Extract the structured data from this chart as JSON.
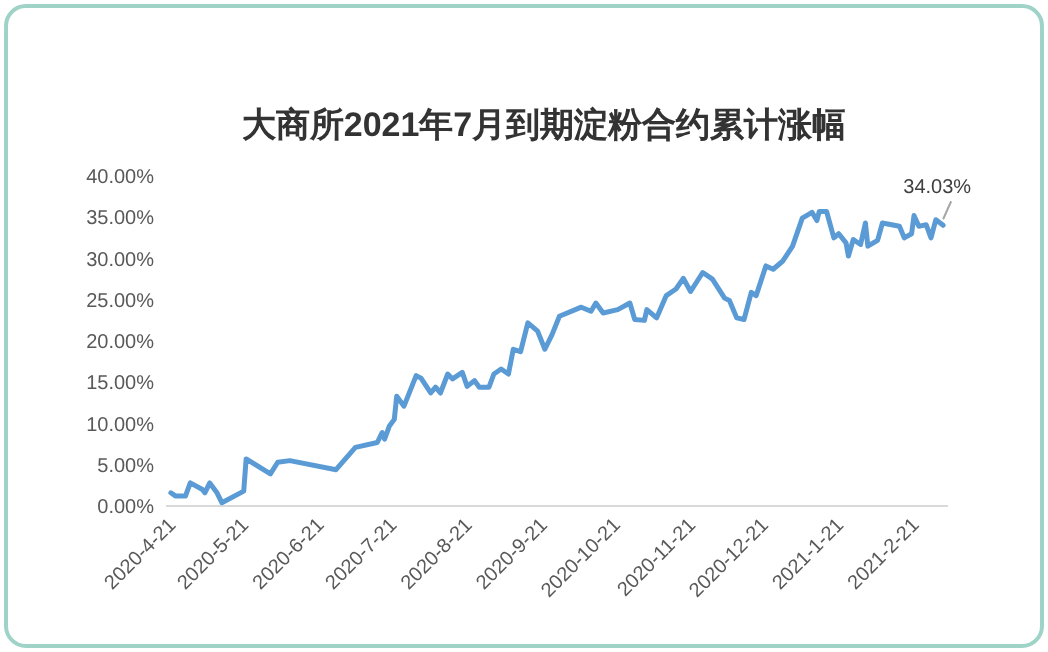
{
  "chart_data": {
    "type": "line",
    "title": "大商所2021年7月到期淀粉合约累计涨幅",
    "x": [
      "2020-04-21",
      "2020-04-23",
      "2020-04-27",
      "2020-04-29",
      "2020-05-04",
      "2020-05-05",
      "2020-05-07",
      "2020-05-10",
      "2020-05-12",
      "2020-05-21",
      "2020-05-22",
      "2020-06-01",
      "2020-06-04",
      "2020-06-09",
      "2020-06-28",
      "2020-07-06",
      "2020-07-15",
      "2020-07-17",
      "2020-07-18",
      "2020-07-20",
      "2020-07-22",
      "2020-07-23",
      "2020-07-26",
      "2020-07-31",
      "2020-08-02",
      "2020-08-06",
      "2020-08-08",
      "2020-08-10",
      "2020-08-13",
      "2020-08-15",
      "2020-08-19",
      "2020-08-21",
      "2020-08-24",
      "2020-08-26",
      "2020-08-30",
      "2020-09-01",
      "2020-09-04",
      "2020-09-07",
      "2020-09-09",
      "2020-09-12",
      "2020-09-15",
      "2020-09-19",
      "2020-09-22",
      "2020-09-25",
      "2020-09-28",
      "2020-10-07",
      "2020-10-11",
      "2020-10-13",
      "2020-10-16",
      "2020-10-22",
      "2020-10-27",
      "2020-10-29",
      "2020-11-02",
      "2020-11-03",
      "2020-11-07",
      "2020-11-11",
      "2020-11-15",
      "2020-11-18",
      "2020-11-21",
      "2020-11-26",
      "2020-11-30",
      "2020-12-05",
      "2020-12-07",
      "2020-12-10",
      "2020-12-13",
      "2020-12-16",
      "2020-12-18",
      "2020-12-22",
      "2020-12-25",
      "2020-12-29",
      "2021-01-02",
      "2021-01-06",
      "2021-01-10",
      "2021-01-12",
      "2021-01-13",
      "2021-01-16",
      "2021-01-19",
      "2021-01-21",
      "2021-01-24",
      "2021-01-25",
      "2021-01-27",
      "2021-01-30",
      "2021-02-01",
      "2021-02-02",
      "2021-02-06",
      "2021-02-08",
      "2021-02-15",
      "2021-02-17",
      "2021-02-20",
      "2021-02-21",
      "2021-02-23",
      "2021-02-26",
      "2021-02-28",
      "2021-03-02",
      "2021-03-05"
    ],
    "series": [
      {
        "color": "#5b9bd5",
        "values": [
          1.6,
          1.2,
          1.2,
          2.8,
          2.0,
          1.6,
          2.8,
          1.6,
          0.4,
          1.8,
          5.7,
          3.9,
          5.3,
          5.5,
          4.4,
          7.1,
          7.7,
          8.9,
          8.1,
          9.7,
          10.5,
          13.3,
          12.1,
          15.8,
          15.5,
          13.7,
          14.4,
          13.7,
          16.0,
          15.4,
          16.2,
          14.5,
          15.2,
          14.4,
          14.4,
          16.0,
          16.6,
          16.0,
          19.0,
          18.7,
          22.2,
          21.2,
          19.0,
          20.8,
          23.0,
          24.1,
          23.6,
          24.6,
          23.4,
          23.8,
          24.6,
          22.6,
          22.5,
          23.8,
          22.8,
          25.5,
          26.3,
          27.6,
          26.0,
          28.3,
          27.5,
          25.2,
          24.9,
          22.8,
          22.6,
          25.9,
          25.5,
          29.1,
          28.7,
          29.7,
          31.5,
          34.9,
          35.6,
          34.6,
          35.7,
          35.7,
          32.5,
          33.0,
          31.9,
          30.3,
          32.3,
          31.7,
          34.3,
          31.5,
          32.2,
          34.3,
          33.9,
          32.5,
          33.0,
          35.2,
          33.9,
          34.1,
          32.5,
          34.7,
          34.03
        ]
      }
    ],
    "xlim": [
      "2020-04-19",
      "2021-03-07"
    ],
    "xticks": [
      {
        "value": "2020-04-21",
        "label": "2020-4-21"
      },
      {
        "value": "2020-05-21",
        "label": "2020-5-21"
      },
      {
        "value": "2020-06-21",
        "label": "2020-6-21"
      },
      {
        "value": "2020-07-21",
        "label": "2020-7-21"
      },
      {
        "value": "2020-08-21",
        "label": "2020-8-21"
      },
      {
        "value": "2020-09-21",
        "label": "2020-9-21"
      },
      {
        "value": "2020-10-21",
        "label": "2020-10-21"
      },
      {
        "value": "2020-11-21",
        "label": "2020-11-21"
      },
      {
        "value": "2020-12-21",
        "label": "2020-12-21"
      },
      {
        "value": "2021-01-21",
        "label": "2021-1-21"
      },
      {
        "value": "2021-02-21",
        "label": "2021-2-21"
      }
    ],
    "ylim": [
      0,
      40
    ],
    "yticks": [
      {
        "value": 0,
        "label": "0.00%"
      },
      {
        "value": 5,
        "label": "5.00%"
      },
      {
        "value": 10,
        "label": "10.00%"
      },
      {
        "value": 15,
        "label": "15.00%"
      },
      {
        "value": 20,
        "label": "20.00%"
      },
      {
        "value": 25,
        "label": "25.00%"
      },
      {
        "value": 30,
        "label": "30.00%"
      },
      {
        "value": 35,
        "label": "35.00%"
      },
      {
        "value": 40,
        "label": "40.00%"
      }
    ],
    "annotations": [
      {
        "text": "34.03%",
        "x": "2021-03-05",
        "y": 34.03
      }
    ],
    "grid": false,
    "marker": "none",
    "line_style": "solid"
  }
}
